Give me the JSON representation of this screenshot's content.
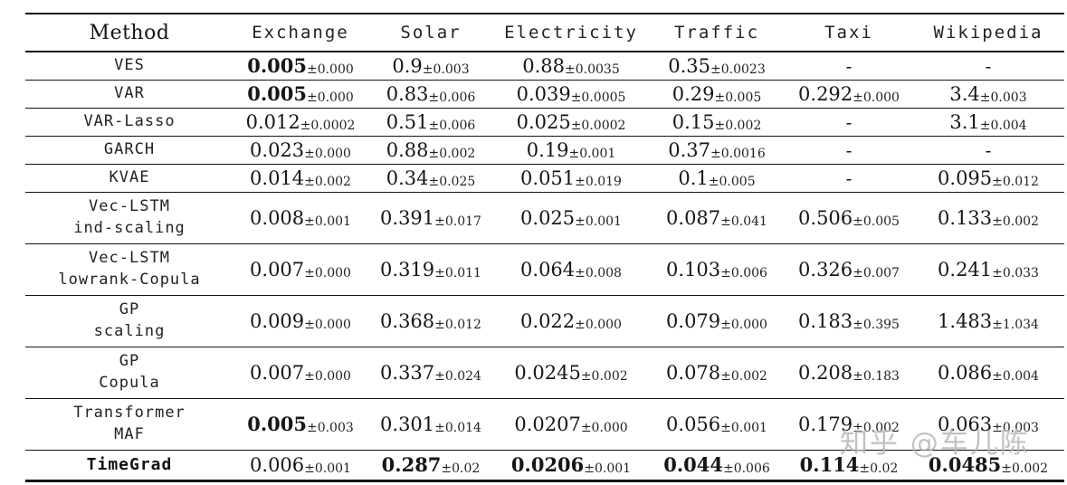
{
  "watermark": {
    "text": "知乎 @车儿陈",
    "color": "#b4b4b4"
  },
  "table": {
    "columns": [
      {
        "key": "method",
        "label": "Method"
      },
      {
        "key": "exchange",
        "label": "Exchange"
      },
      {
        "key": "solar",
        "label": "Solar"
      },
      {
        "key": "electricity",
        "label": "Electricity"
      },
      {
        "key": "traffic",
        "label": "Traffic"
      },
      {
        "key": "taxi",
        "label": "Taxi"
      },
      {
        "key": "wikipedia",
        "label": "Wikipedia"
      }
    ],
    "rows": [
      {
        "method": [
          "VES"
        ],
        "bold_method": false,
        "type": "single",
        "cells": [
          {
            "m": "0.005",
            "s": "±0.000",
            "b": true
          },
          {
            "m": "0.9",
            "s": "±0.003"
          },
          {
            "m": "0.88",
            "s": "±0.0035"
          },
          {
            "m": "0.35",
            "s": "±0.0023"
          },
          {
            "m": "-"
          },
          {
            "m": "-"
          }
        ]
      },
      {
        "method": [
          "VAR"
        ],
        "bold_method": false,
        "type": "single",
        "cells": [
          {
            "m": "0.005",
            "s": "±0.000",
            "b": true
          },
          {
            "m": "0.83",
            "s": "±0.006"
          },
          {
            "m": "0.039",
            "s": "±0.0005"
          },
          {
            "m": "0.29",
            "s": "±0.005"
          },
          {
            "m": "0.292",
            "s": "±0.000"
          },
          {
            "m": "3.4",
            "s": "±0.003"
          }
        ]
      },
      {
        "method": [
          "VAR-Lasso"
        ],
        "bold_method": false,
        "type": "single",
        "cells": [
          {
            "m": "0.012",
            "s": "±0.0002"
          },
          {
            "m": "0.51",
            "s": "±0.006"
          },
          {
            "m": "0.025",
            "s": "±0.0002"
          },
          {
            "m": "0.15",
            "s": "±0.002"
          },
          {
            "m": "-"
          },
          {
            "m": "3.1",
            "s": "±0.004"
          }
        ]
      },
      {
        "method": [
          "GARCH"
        ],
        "bold_method": false,
        "type": "single",
        "cells": [
          {
            "m": "0.023",
            "s": "±0.000"
          },
          {
            "m": "0.88",
            "s": "±0.002"
          },
          {
            "m": "0.19",
            "s": "±0.001"
          },
          {
            "m": "0.37",
            "s": "±0.0016"
          },
          {
            "m": "-"
          },
          {
            "m": "-"
          }
        ]
      },
      {
        "method": [
          "KVAE"
        ],
        "bold_method": false,
        "type": "single",
        "cells": [
          {
            "m": "0.014",
            "s": "±0.002"
          },
          {
            "m": "0.34",
            "s": "±0.025"
          },
          {
            "m": "0.051",
            "s": "±0.019"
          },
          {
            "m": "0.1",
            "s": "±0.005"
          },
          {
            "m": "-"
          },
          {
            "m": "0.095",
            "s": "±0.012"
          }
        ]
      },
      {
        "method": [
          "Vec-LSTM",
          "ind-scaling"
        ],
        "bold_method": false,
        "type": "double",
        "cells": [
          {
            "m": "0.008",
            "s": "±0.001"
          },
          {
            "m": "0.391",
            "s": "±0.017"
          },
          {
            "m": "0.025",
            "s": "±0.001"
          },
          {
            "m": "0.087",
            "s": "±0.041"
          },
          {
            "m": "0.506",
            "s": "±0.005"
          },
          {
            "m": "0.133",
            "s": "±0.002"
          }
        ]
      },
      {
        "method": [
          "Vec-LSTM",
          "lowrank-Copula"
        ],
        "bold_method": false,
        "type": "double",
        "cells": [
          {
            "m": "0.007",
            "s": "±0.000"
          },
          {
            "m": "0.319",
            "s": "±0.011"
          },
          {
            "m": "0.064",
            "s": "±0.008"
          },
          {
            "m": "0.103",
            "s": "±0.006"
          },
          {
            "m": "0.326",
            "s": "±0.007"
          },
          {
            "m": "0.241",
            "s": "±0.033"
          }
        ]
      },
      {
        "method": [
          "GP",
          "scaling"
        ],
        "bold_method": false,
        "type": "double",
        "cells": [
          {
            "m": "0.009",
            "s": "±0.000"
          },
          {
            "m": "0.368",
            "s": "±0.012"
          },
          {
            "m": "0.022",
            "s": "±0.000"
          },
          {
            "m": "0.079",
            "s": "±0.000"
          },
          {
            "m": "0.183",
            "s": "±0.395"
          },
          {
            "m": "1.483",
            "s": "±1.034"
          }
        ]
      },
      {
        "method": [
          "GP",
          "Copula"
        ],
        "bold_method": false,
        "type": "double",
        "cells": [
          {
            "m": "0.007",
            "s": "±0.000"
          },
          {
            "m": "0.337",
            "s": "±0.024"
          },
          {
            "m": "0.0245",
            "s": "±0.002"
          },
          {
            "m": "0.078",
            "s": "±0.002"
          },
          {
            "m": "0.208",
            "s": "±0.183"
          },
          {
            "m": "0.086",
            "s": "±0.004"
          }
        ]
      },
      {
        "method": [
          "Transformer",
          "MAF"
        ],
        "bold_method": false,
        "type": "double",
        "cells": [
          {
            "m": "0.005",
            "s": "±0.003",
            "b": true
          },
          {
            "m": "0.301",
            "s": "±0.014"
          },
          {
            "m": "0.0207",
            "s": "±0.000"
          },
          {
            "m": "0.056",
            "s": "±0.001"
          },
          {
            "m": "0.179",
            "s": "±0.002"
          },
          {
            "m": "0.063",
            "s": "±0.003"
          }
        ]
      },
      {
        "method": [
          "TimeGrad"
        ],
        "bold_method": true,
        "type": "last",
        "cells": [
          {
            "m": "0.006",
            "s": "±0.001"
          },
          {
            "m": "0.287",
            "s": "±0.02",
            "b": true
          },
          {
            "m": "0.0206",
            "s": "±0.001",
            "b": true
          },
          {
            "m": "0.044",
            "s": "±0.006",
            "b": true
          },
          {
            "m": "0.114",
            "s": "±0.02",
            "b": true
          },
          {
            "m": "0.0485",
            "s": "±0.002",
            "b": true
          }
        ]
      }
    ]
  }
}
